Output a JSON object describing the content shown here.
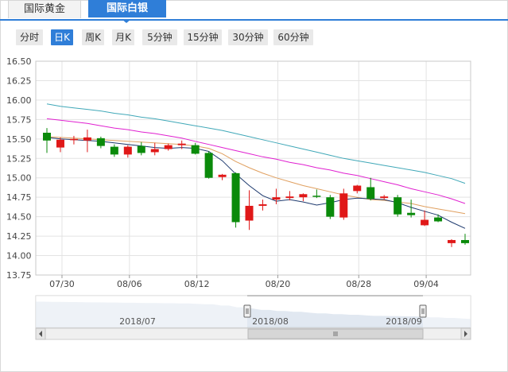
{
  "tabs": [
    {
      "label": "国际黄金",
      "active": false
    },
    {
      "label": "国际白银",
      "active": true
    }
  ],
  "periods": [
    {
      "label": "分时",
      "active": false
    },
    {
      "label": "日K",
      "active": true
    },
    {
      "label": "周K",
      "active": false
    },
    {
      "label": "月K",
      "active": false
    },
    {
      "label": "5分钟",
      "active": false
    },
    {
      "label": "15分钟",
      "active": false
    },
    {
      "label": "30分钟",
      "active": false
    },
    {
      "label": "60分钟",
      "active": false
    }
  ],
  "colors": {
    "accent": "#2f7ed8",
    "up": "#e01818",
    "down": "#0a8a0a",
    "ma5": "#1e3a6e",
    "ma10": "#e0a060",
    "ma20": "#e020d0",
    "ma30": "#40a8b8",
    "navigator_fill": "#c9d6e6"
  },
  "chart_data": {
    "type": "candlestick",
    "y_ticks": [
      "16.50",
      "16.25",
      "16.00",
      "15.75",
      "15.50",
      "15.25",
      "15.00",
      "14.75",
      "14.50",
      "14.25",
      "14.00",
      "13.75"
    ],
    "ylim": [
      13.75,
      16.5
    ],
    "x_ticks": [
      "07/30",
      "08/06",
      "08/12",
      "08/20",
      "08/28",
      "09/04"
    ],
    "candles": [
      {
        "o": 15.58,
        "h": 15.64,
        "l": 15.32,
        "c": 15.48
      },
      {
        "o": 15.39,
        "h": 15.52,
        "l": 15.33,
        "c": 15.49
      },
      {
        "o": 15.49,
        "h": 15.54,
        "l": 15.43,
        "c": 15.5
      },
      {
        "o": 15.48,
        "h": 15.62,
        "l": 15.33,
        "c": 15.52
      },
      {
        "o": 15.51,
        "h": 15.53,
        "l": 15.38,
        "c": 15.41
      },
      {
        "o": 15.4,
        "h": 15.43,
        "l": 15.27,
        "c": 15.3
      },
      {
        "o": 15.3,
        "h": 15.42,
        "l": 15.26,
        "c": 15.4
      },
      {
        "o": 15.41,
        "h": 15.46,
        "l": 15.29,
        "c": 15.32
      },
      {
        "o": 15.33,
        "h": 15.45,
        "l": 15.29,
        "c": 15.37
      },
      {
        "o": 15.37,
        "h": 15.44,
        "l": 15.35,
        "c": 15.42
      },
      {
        "o": 15.42,
        "h": 15.48,
        "l": 15.37,
        "c": 15.44
      },
      {
        "o": 15.42,
        "h": 15.45,
        "l": 15.3,
        "c": 15.31
      },
      {
        "o": 15.32,
        "h": 15.34,
        "l": 14.99,
        "c": 15.0
      },
      {
        "o": 15.01,
        "h": 15.05,
        "l": 14.97,
        "c": 15.04
      },
      {
        "o": 15.06,
        "h": 15.07,
        "l": 14.36,
        "c": 14.43
      },
      {
        "o": 14.45,
        "h": 14.84,
        "l": 14.33,
        "c": 14.64
      },
      {
        "o": 14.64,
        "h": 14.72,
        "l": 14.58,
        "c": 14.66
      },
      {
        "o": 14.72,
        "h": 14.86,
        "l": 14.66,
        "c": 14.75
      },
      {
        "o": 14.74,
        "h": 14.83,
        "l": 14.71,
        "c": 14.76
      },
      {
        "o": 14.75,
        "h": 14.8,
        "l": 14.7,
        "c": 14.79
      },
      {
        "o": 14.77,
        "h": 14.85,
        "l": 14.74,
        "c": 14.76
      },
      {
        "o": 14.75,
        "h": 14.78,
        "l": 14.47,
        "c": 14.5
      },
      {
        "o": 14.49,
        "h": 14.86,
        "l": 14.46,
        "c": 14.8
      },
      {
        "o": 14.83,
        "h": 14.91,
        "l": 14.8,
        "c": 14.9
      },
      {
        "o": 14.88,
        "h": 15.0,
        "l": 14.71,
        "c": 14.73
      },
      {
        "o": 14.74,
        "h": 14.78,
        "l": 14.72,
        "c": 14.76
      },
      {
        "o": 14.75,
        "h": 14.78,
        "l": 14.5,
        "c": 14.53
      },
      {
        "o": 14.55,
        "h": 14.72,
        "l": 14.49,
        "c": 14.52
      },
      {
        "o": 14.39,
        "h": 14.58,
        "l": 14.38,
        "c": 14.46
      },
      {
        "o": 14.49,
        "h": 14.53,
        "l": 14.43,
        "c": 14.44
      },
      {
        "o": 14.16,
        "h": 14.21,
        "l": 14.11,
        "c": 14.2
      },
      {
        "o": 14.2,
        "h": 14.28,
        "l": 14.14,
        "c": 14.16
      }
    ],
    "ma5": [
      15.52,
      15.5,
      15.49,
      15.48,
      15.47,
      15.45,
      15.43,
      15.41,
      15.39,
      15.38,
      15.39,
      15.38,
      15.34,
      15.22,
      15.05,
      14.9,
      14.77,
      14.7,
      14.72,
      14.69,
      14.65,
      14.68,
      14.72,
      14.74,
      14.73,
      14.72,
      14.68,
      14.62,
      14.57,
      14.52,
      14.43,
      14.35
    ],
    "ma10": [
      15.53,
      15.52,
      15.51,
      15.5,
      15.49,
      15.48,
      15.47,
      15.46,
      15.45,
      15.44,
      15.43,
      15.41,
      15.38,
      15.31,
      15.21,
      15.13,
      15.06,
      15.0,
      14.95,
      14.9,
      14.86,
      14.82,
      14.78,
      14.75,
      14.72,
      14.71,
      14.69,
      14.67,
      14.63,
      14.6,
      14.57,
      14.54
    ],
    "ma20": [
      15.76,
      15.74,
      15.72,
      15.7,
      15.67,
      15.64,
      15.62,
      15.59,
      15.57,
      15.54,
      15.51,
      15.47,
      15.43,
      15.39,
      15.35,
      15.31,
      15.27,
      15.24,
      15.2,
      15.17,
      15.13,
      15.1,
      15.06,
      15.03,
      14.99,
      14.95,
      14.91,
      14.86,
      14.82,
      14.78,
      14.73,
      14.67
    ],
    "ma30": [
      15.95,
      15.92,
      15.9,
      15.88,
      15.86,
      15.83,
      15.81,
      15.78,
      15.76,
      15.73,
      15.7,
      15.67,
      15.64,
      15.61,
      15.57,
      15.53,
      15.49,
      15.45,
      15.41,
      15.37,
      15.33,
      15.29,
      15.25,
      15.22,
      15.19,
      15.16,
      15.13,
      15.1,
      15.07,
      15.03,
      14.99,
      14.93
    ],
    "navigator": {
      "labels": [
        "2018/07",
        "2018/08",
        "2018/09"
      ]
    }
  }
}
